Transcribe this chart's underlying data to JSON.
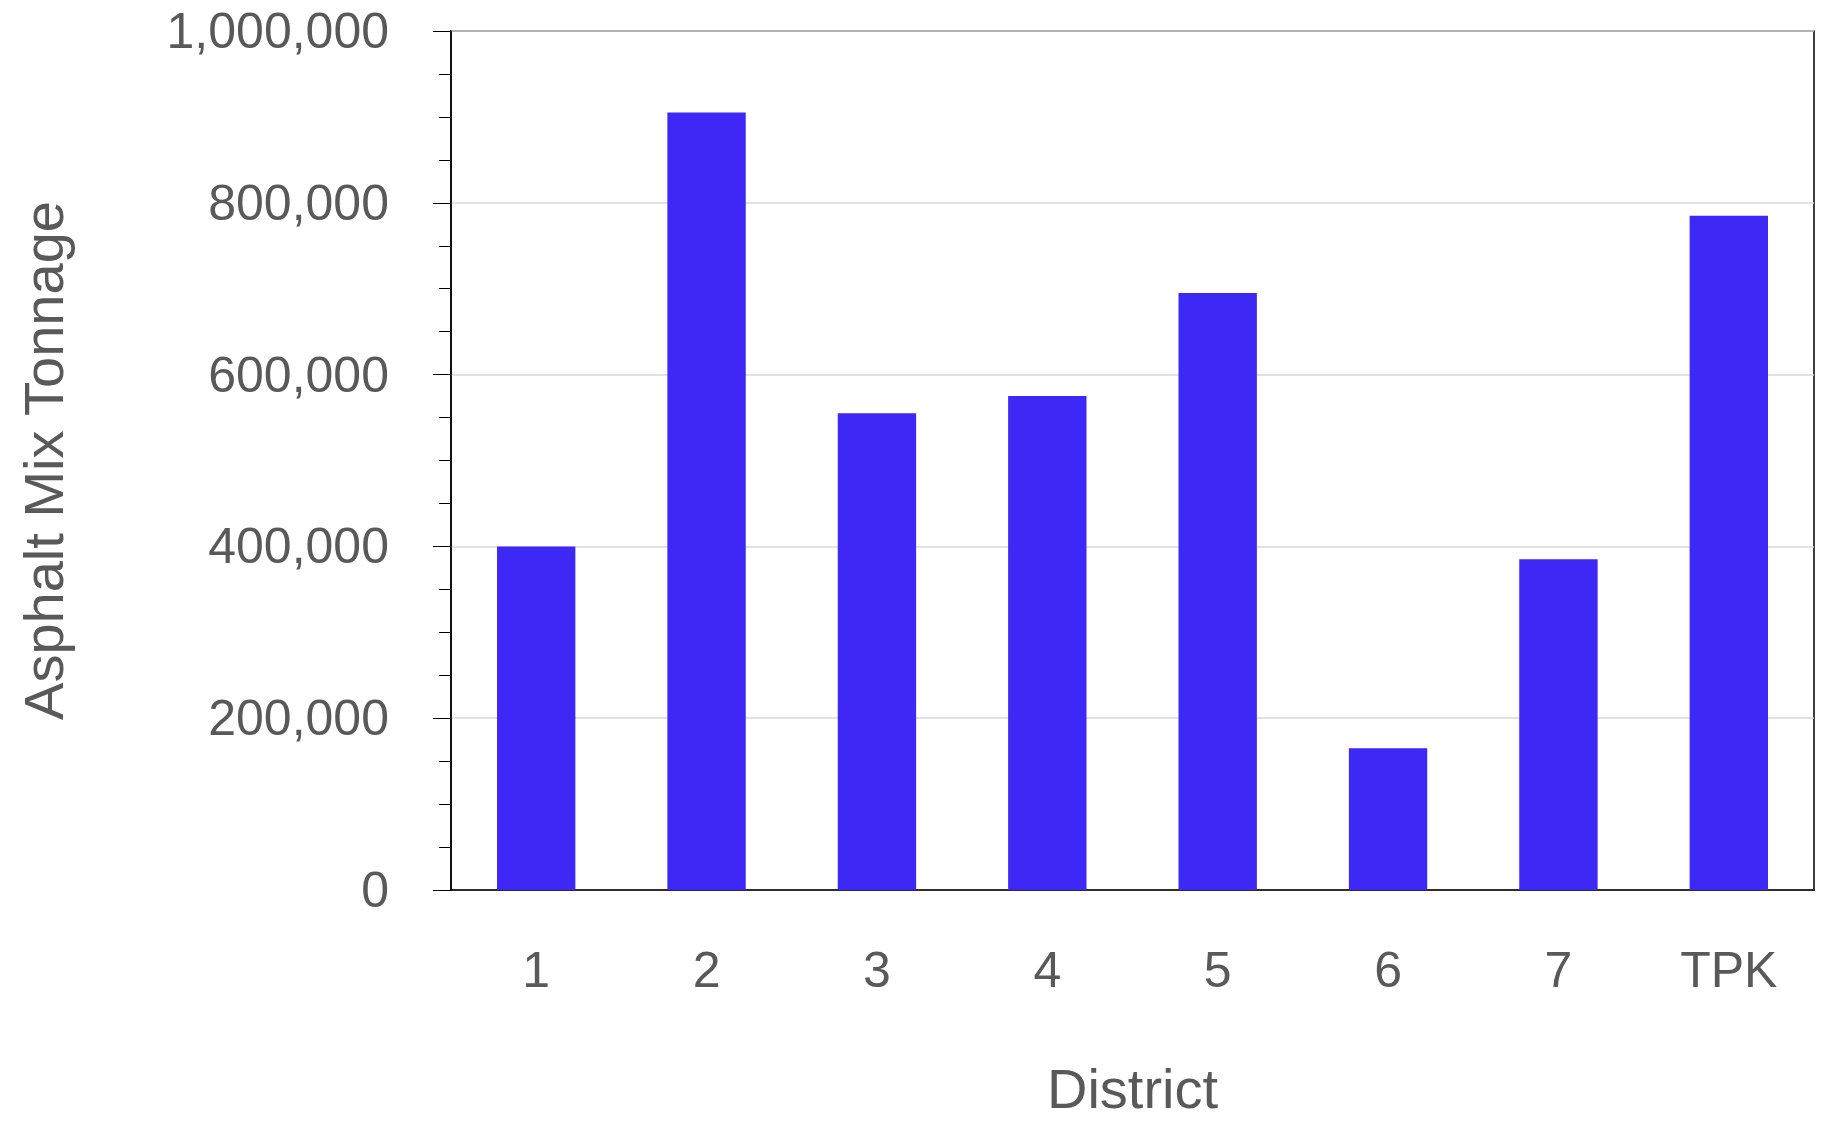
{
  "chart_data": {
    "type": "bar",
    "xlabel": "District",
    "ylabel": "Asphalt Mix Tonnage",
    "categories": [
      "1",
      "2",
      "3",
      "4",
      "5",
      "6",
      "7",
      "TPK"
    ],
    "values": [
      400000,
      905000,
      555000,
      575000,
      695000,
      165000,
      385000,
      785000
    ],
    "color": "#3d28f5",
    "ylim": [
      0,
      1000000
    ],
    "yticks": [
      {
        "value": 0,
        "label": "0"
      },
      {
        "value": 200000,
        "label": "200,000"
      },
      {
        "value": 400000,
        "label": "400,000"
      },
      {
        "value": 600000,
        "label": "600,000"
      },
      {
        "value": 800000,
        "label": "800,000"
      },
      {
        "value": 1000000,
        "label": "1,000,000"
      }
    ],
    "grid": "y"
  }
}
